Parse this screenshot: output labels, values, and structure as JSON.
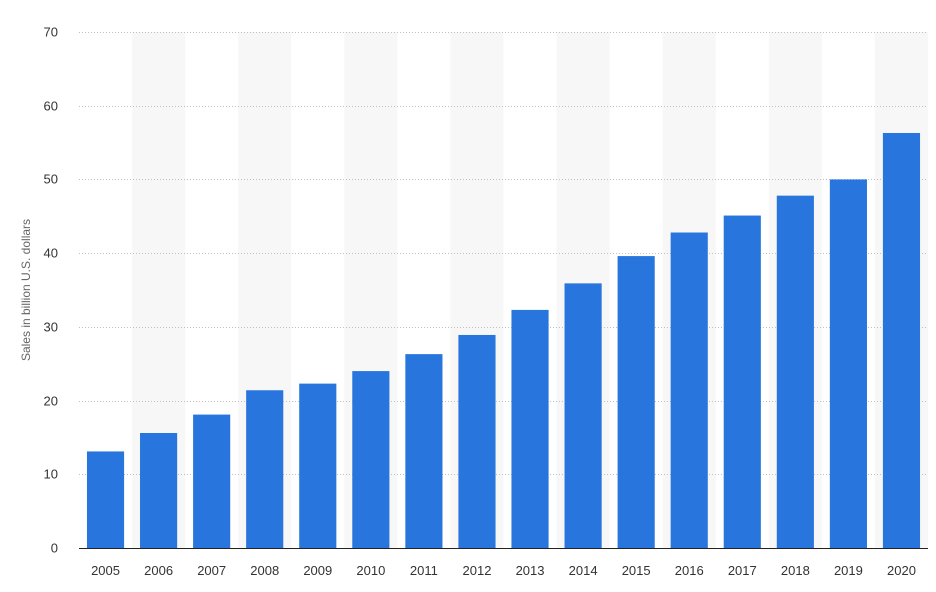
{
  "chart_data": {
    "type": "bar",
    "categories": [
      "2005",
      "2006",
      "2007",
      "2008",
      "2009",
      "2010",
      "2011",
      "2012",
      "2013",
      "2014",
      "2015",
      "2016",
      "2017",
      "2018",
      "2019",
      "2020"
    ],
    "values": [
      13.1,
      15.6,
      18.1,
      21.4,
      22.3,
      24.0,
      26.3,
      28.9,
      32.3,
      35.9,
      39.6,
      42.8,
      45.1,
      47.8,
      50.0,
      56.3
    ],
    "xlabel": "",
    "ylabel": "Sales in billion U.S. dollars",
    "ylim": [
      0,
      70
    ],
    "yticks": [
      0,
      10,
      20,
      30,
      40,
      50,
      60,
      70
    ],
    "grid": true,
    "alternating_column_bands": true,
    "colors": {
      "bar": "#2876dd",
      "band": "#f7f7f7"
    }
  }
}
